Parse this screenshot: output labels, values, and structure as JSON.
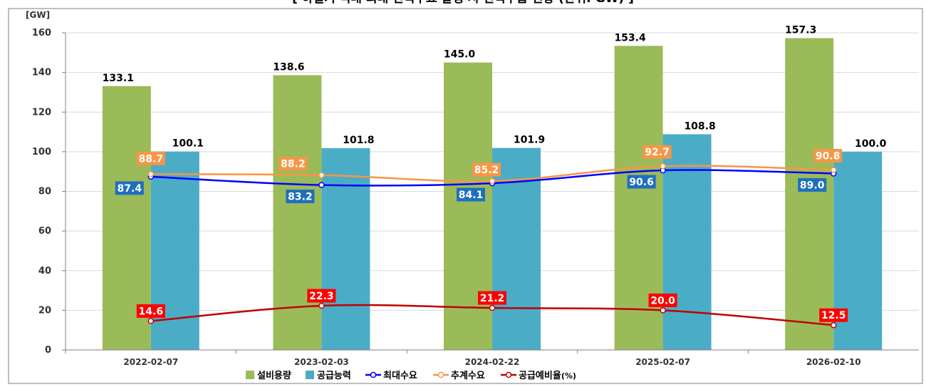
{
  "chart_data": {
    "type": "bar",
    "title": "[ 하절기 역대 최대 전력수요 발생 시 전력수급 현황 (단위: GW) ]",
    "ylabel": "[GW]",
    "xlabel": "",
    "ylim": [
      0,
      160
    ],
    "yticks": [
      0,
      20,
      40,
      60,
      80,
      100,
      120,
      140,
      160
    ],
    "grid": true,
    "legend_position": "bottom",
    "categories": [
      "2022-02-07",
      "2023-02-03",
      "2024-02-22",
      "2025-02-07",
      "2026-02-10"
    ],
    "bars": [
      {
        "name": "설비용량",
        "color": "#9bbb59",
        "values": [
          133.1,
          138.6,
          145.0,
          153.4,
          157.3
        ],
        "labels": [
          "133.1",
          "138.6",
          "145.0",
          "153.4",
          "157.3"
        ]
      },
      {
        "name": "공급능력",
        "color": "#4bacc6",
        "values": [
          100.1,
          101.8,
          101.9,
          108.8,
          100.0
        ],
        "labels": [
          "100.1",
          "101.8",
          "101.9",
          "108.8",
          "100.0"
        ]
      }
    ],
    "lines": [
      {
        "name": "최대수요",
        "color": "#0000ff",
        "label_bg": "#1f6fbf",
        "values": [
          87.4,
          83.2,
          84.1,
          90.6,
          89.0
        ],
        "labels": [
          "87.4",
          "83.2",
          "84.1",
          "90.6",
          "89.0"
        ]
      },
      {
        "name": "추계수요",
        "color": "#f79646",
        "label_bg": "#f79646",
        "values": [
          88.7,
          88.2,
          85.2,
          92.7,
          90.8
        ],
        "labels": [
          "88.7",
          "88.2",
          "85.2",
          "92.7",
          "90.8"
        ]
      },
      {
        "name": "공급예비율",
        "legend_suffix": "(%)",
        "color": "#c00000",
        "label_bg": "#ff0000",
        "values": [
          14.6,
          22.3,
          21.2,
          20.0,
          12.5
        ],
        "labels": [
          "14.6",
          "22.3",
          "21.2",
          "20.0",
          "12.5"
        ]
      }
    ]
  }
}
